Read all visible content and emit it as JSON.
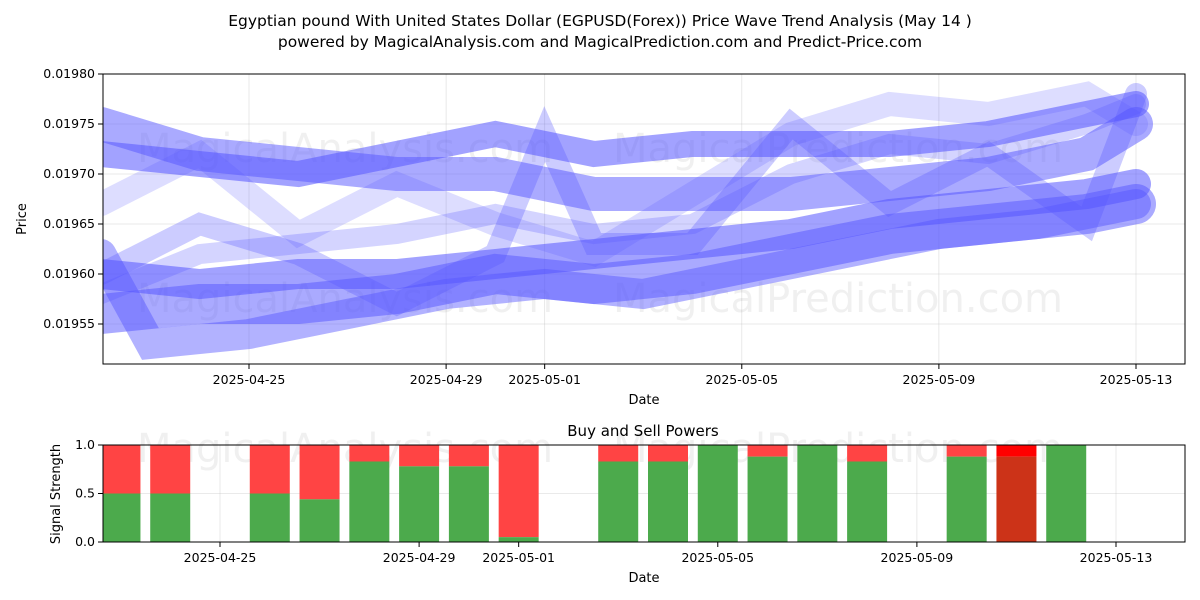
{
  "chart_data": [
    {
      "type": "line",
      "title": "Egyptian pound With United States Dollar (EGPUSD(Forex)) Price Wave Trend Analysis (May 14 )",
      "subtitle": "powered by MagicalAnalysis.com and MagicalPrediction.com and Predict-Price.com",
      "xlabel": "Date",
      "ylabel": "Price",
      "x_ticks": [
        "2025-04-25",
        "2025-04-29",
        "2025-05-01",
        "2025-05-05",
        "2025-05-09",
        "2025-05-13"
      ],
      "y_ticks": [
        "0.01955",
        "0.01960",
        "0.01965",
        "0.01970",
        "0.01975",
        "0.01980"
      ],
      "ylim": [
        0.01951,
        0.0198
      ],
      "xlim": [
        "2025-04-21",
        "2025-05-14"
      ],
      "grid": true,
      "watermarks": [
        "MagicalAnalysis.com",
        "MagicalPrediction.com"
      ],
      "band_color": "#5555ff",
      "series": [
        {
          "x": [
            "2025-04-22",
            "2025-04-24",
            "2025-04-26",
            "2025-04-28",
            "2025-04-30",
            "2025-05-02",
            "2025-05-04",
            "2025-05-06",
            "2025-05-08",
            "2025-05-10",
            "2025-05-12",
            "2025-05-13"
          ],
          "values": [
            0.01972,
            0.01971,
            0.0197,
            0.01972,
            0.01974,
            0.01972,
            0.01973,
            0.01973,
            0.01973,
            0.01974,
            0.01976,
            0.01977
          ],
          "width": 26,
          "opacity": 0.55
        },
        {
          "x": [
            "2025-04-22",
            "2025-04-24",
            "2025-04-26",
            "2025-04-28",
            "2025-04-30",
            "2025-05-02",
            "2025-05-04",
            "2025-05-06",
            "2025-05-08",
            "2025-05-10",
            "2025-05-12",
            "2025-05-13"
          ],
          "values": [
            0.01975,
            0.01972,
            0.01971,
            0.0197,
            0.0197,
            0.01968,
            0.01968,
            0.01968,
            0.01969,
            0.0197,
            0.01972,
            0.01975
          ],
          "width": 34,
          "opacity": 0.5
        },
        {
          "x": [
            "2025-04-22",
            "2025-04-24",
            "2025-04-26",
            "2025-04-28",
            "2025-04-30",
            "2025-05-02",
            "2025-05-04",
            "2025-05-06",
            "2025-05-08",
            "2025-05-10",
            "2025-05-12",
            "2025-05-13"
          ],
          "values": [
            0.0196,
            0.01959,
            0.0196,
            0.0196,
            0.01961,
            0.01962,
            0.01963,
            0.01964,
            0.01966,
            0.01967,
            0.01968,
            0.01969
          ],
          "width": 30,
          "opacity": 0.55
        },
        {
          "x": [
            "2025-04-22",
            "2025-04-24",
            "2025-04-26",
            "2025-04-28",
            "2025-04-30",
            "2025-05-02",
            "2025-05-04",
            "2025-05-06",
            "2025-05-08",
            "2025-05-10",
            "2025-05-12",
            "2025-05-13"
          ],
          "values": [
            0.01956,
            0.01957,
            0.01957,
            0.01958,
            0.0196,
            0.01959,
            0.0196,
            0.01962,
            0.01964,
            0.01965,
            0.01966,
            0.01967
          ],
          "width": 40,
          "opacity": 0.5
        },
        {
          "x": [
            "2025-04-22",
            "2025-04-23",
            "2025-04-25",
            "2025-04-27",
            "2025-04-29",
            "2025-05-01",
            "2025-05-03",
            "2025-05-05",
            "2025-05-07",
            "2025-05-09",
            "2025-05-11",
            "2025-05-13"
          ],
          "values": [
            0.01962,
            0.01953,
            0.01954,
            0.01956,
            0.01958,
            0.01959,
            0.01958,
            0.0196,
            0.01962,
            0.01964,
            0.01965,
            0.01967
          ],
          "width": 30,
          "opacity": 0.45
        },
        {
          "x": [
            "2025-04-22",
            "2025-04-24",
            "2025-04-26",
            "2025-04-28",
            "2025-04-30",
            "2025-05-01",
            "2025-05-02",
            "2025-05-04",
            "2025-05-06",
            "2025-05-08",
            "2025-05-10",
            "2025-05-12",
            "2025-05-13"
          ],
          "values": [
            0.0196,
            0.01965,
            0.01962,
            0.01957,
            0.01962,
            0.01974,
            0.01963,
            0.01963,
            0.01975,
            0.01967,
            0.01972,
            0.01965,
            0.01978
          ],
          "width": 22,
          "opacity": 0.3
        },
        {
          "x": [
            "2025-04-22",
            "2025-04-24",
            "2025-04-26",
            "2025-04-28",
            "2025-04-30",
            "2025-05-02",
            "2025-05-04",
            "2025-05-06",
            "2025-05-08",
            "2025-05-10",
            "2025-05-12",
            "2025-05-13"
          ],
          "values": [
            0.01967,
            0.01972,
            0.01964,
            0.01969,
            0.01965,
            0.01962,
            0.01968,
            0.01974,
            0.01977,
            0.01976,
            0.01978,
            0.01975
          ],
          "width": 24,
          "opacity": 0.2
        },
        {
          "x": [
            "2025-04-22",
            "2025-04-24",
            "2025-04-26",
            "2025-04-28",
            "2025-04-30",
            "2025-05-02",
            "2025-05-04",
            "2025-05-06",
            "2025-05-08",
            "2025-05-10",
            "2025-05-12",
            "2025-05-13"
          ],
          "values": [
            0.01958,
            0.01962,
            0.01963,
            0.01964,
            0.01966,
            0.01964,
            0.01965,
            0.0197,
            0.01973,
            0.01972,
            0.01975,
            0.01977
          ],
          "width": 20,
          "opacity": 0.25
        }
      ]
    },
    {
      "type": "bar",
      "title": "Buy and Sell Powers",
      "xlabel": "Date",
      "ylabel": "Signal Strength",
      "x_ticks": [
        "2025-04-25",
        "2025-04-29",
        "2025-05-01",
        "2025-05-05",
        "2025-05-09",
        "2025-05-13"
      ],
      "y_ticks": [
        "0.0",
        "0.5",
        "1.0"
      ],
      "ylim": [
        0,
        1
      ],
      "grid": true,
      "buy_color": "#4caa4c",
      "sell_color": "#ff4444",
      "strong_sell_color": "#ff0000",
      "strong_buy_color": "#cc3318",
      "bars": [
        {
          "date": "2025-04-23",
          "buy": 0.5
        },
        {
          "date": "2025-04-24",
          "buy": 0.5
        },
        {
          "date": "2025-04-26",
          "buy": 0.5
        },
        {
          "date": "2025-04-27",
          "buy": 0.44
        },
        {
          "date": "2025-04-28",
          "buy": 0.83
        },
        {
          "date": "2025-04-29",
          "buy": 0.78
        },
        {
          "date": "2025-04-30",
          "buy": 0.78
        },
        {
          "date": "2025-05-01",
          "buy": 0.05
        },
        {
          "date": "2025-05-03",
          "buy": 0.83
        },
        {
          "date": "2025-05-04",
          "buy": 0.83
        },
        {
          "date": "2025-05-05",
          "buy": 1.0
        },
        {
          "date": "2025-05-06",
          "buy": 0.88
        },
        {
          "date": "2025-05-07",
          "buy": 1.0
        },
        {
          "date": "2025-05-08",
          "buy": 0.83
        },
        {
          "date": "2025-05-10",
          "buy": 0.88
        },
        {
          "date": "2025-05-11",
          "buy": 0.88,
          "strong": true
        },
        {
          "date": "2025-05-12",
          "buy": 1.0
        }
      ]
    }
  ]
}
